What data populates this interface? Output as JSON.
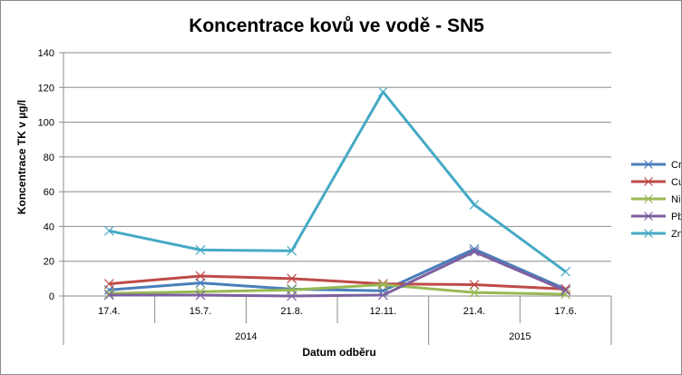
{
  "chart_data": {
    "type": "line",
    "title": "Koncentrace kovů ve vodě - SN5",
    "xlabel": "Datum odběru",
    "ylabel": "Koncentrace TK v µg/l",
    "categories": [
      "17.4.",
      "15.7.",
      "21.8.",
      "12.11.",
      "21.4.",
      "17.6."
    ],
    "year_groups": [
      {
        "label": "2014",
        "span": 4
      },
      {
        "label": "2015",
        "span": 2
      }
    ],
    "ylim": [
      0,
      140
    ],
    "yticks": [
      0,
      20,
      40,
      60,
      80,
      100,
      120,
      140
    ],
    "grid": true,
    "legend": "right",
    "marker": "x",
    "series": [
      {
        "name": "Cr",
        "color": "#4A7EBB",
        "values": [
          3.5,
          7.5,
          4,
          3,
          27,
          4
        ]
      },
      {
        "name": "Cu",
        "color": "#BE4B48",
        "values": [
          7,
          11.5,
          10,
          7,
          6.5,
          4
        ]
      },
      {
        "name": "Ni",
        "color": "#98B954",
        "values": [
          1.5,
          2.5,
          3.5,
          6.5,
          2,
          1
        ]
      },
      {
        "name": "Pb",
        "color": "#7D60A0",
        "values": [
          0.5,
          0.5,
          0,
          0.5,
          25.5,
          3
        ]
      },
      {
        "name": "Zn",
        "color": "#46AAC5",
        "values": [
          37.5,
          26.5,
          26,
          117.5,
          52.5,
          14
        ]
      }
    ]
  }
}
